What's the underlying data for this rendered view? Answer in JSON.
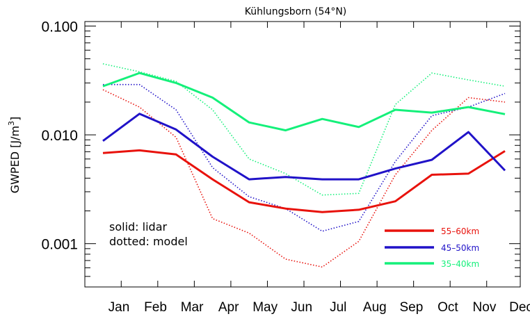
{
  "chart_data": {
    "type": "line",
    "title": "Kühlungsborn (54°N)",
    "ylabel_main": "GWPED  [J/m",
    "ylabel_sup": "3",
    "ylabel_end": "]",
    "yscale": "log",
    "ylim": [
      0.0004,
      0.11
    ],
    "yticks": [
      {
        "value": 0.1,
        "label": "0.100"
      },
      {
        "value": 0.01,
        "label": "0.010"
      },
      {
        "value": 0.001,
        "label": "0.001"
      }
    ],
    "categories": [
      "Jan",
      "Feb",
      "Mar",
      "Apr",
      "May",
      "Jun",
      "Jul",
      "Aug",
      "Sep",
      "Oct",
      "Nov",
      "Dec"
    ],
    "annotations": [
      "solid: lidar",
      "dotted: model"
    ],
    "legend_position": "bottom-right",
    "series": [
      {
        "name": "55–60km",
        "color": "#e8120c",
        "style": "solid",
        "values": [
          0.0068,
          0.0072,
          0.0066,
          0.0039,
          0.0024,
          0.0021,
          0.00195,
          0.00205,
          0.00245,
          0.0043,
          0.0044,
          0.0071
        ]
      },
      {
        "name": "45–50km",
        "color": "#2012c8",
        "style": "solid",
        "values": [
          0.0088,
          0.0156,
          0.0112,
          0.0063,
          0.0039,
          0.0041,
          0.0039,
          0.0039,
          0.0049,
          0.0059,
          0.0106,
          0.0047
        ]
      },
      {
        "name": "35–40km",
        "color": "#14f07a",
        "style": "solid",
        "values": [
          0.028,
          0.037,
          0.03,
          0.022,
          0.013,
          0.011,
          0.014,
          0.0118,
          0.017,
          0.016,
          0.018,
          0.0155
        ]
      },
      {
        "name": "55–60km model",
        "color": "#e8120c",
        "style": "dotted",
        "values": [
          0.026,
          0.018,
          0.0095,
          0.0017,
          0.00125,
          0.00072,
          0.00061,
          0.00105,
          0.0043,
          0.011,
          0.022,
          0.02
        ]
      },
      {
        "name": "45–50km model",
        "color": "#2012c8",
        "style": "dotted",
        "values": [
          0.029,
          0.029,
          0.017,
          0.005,
          0.0027,
          0.0021,
          0.0013,
          0.0016,
          0.0057,
          0.015,
          0.018,
          0.024
        ]
      },
      {
        "name": "35–40km model",
        "color": "#14f07a",
        "style": "dotted",
        "values": [
          0.045,
          0.038,
          0.031,
          0.017,
          0.006,
          0.0044,
          0.0028,
          0.0029,
          0.019,
          0.037,
          0.032,
          0.028
        ]
      }
    ],
    "legend": [
      {
        "label": "55–60km",
        "color": "#e8120c"
      },
      {
        "label": "45–50km",
        "color": "#2012c8"
      },
      {
        "label": "35–40km",
        "color": "#14f07a"
      }
    ]
  }
}
